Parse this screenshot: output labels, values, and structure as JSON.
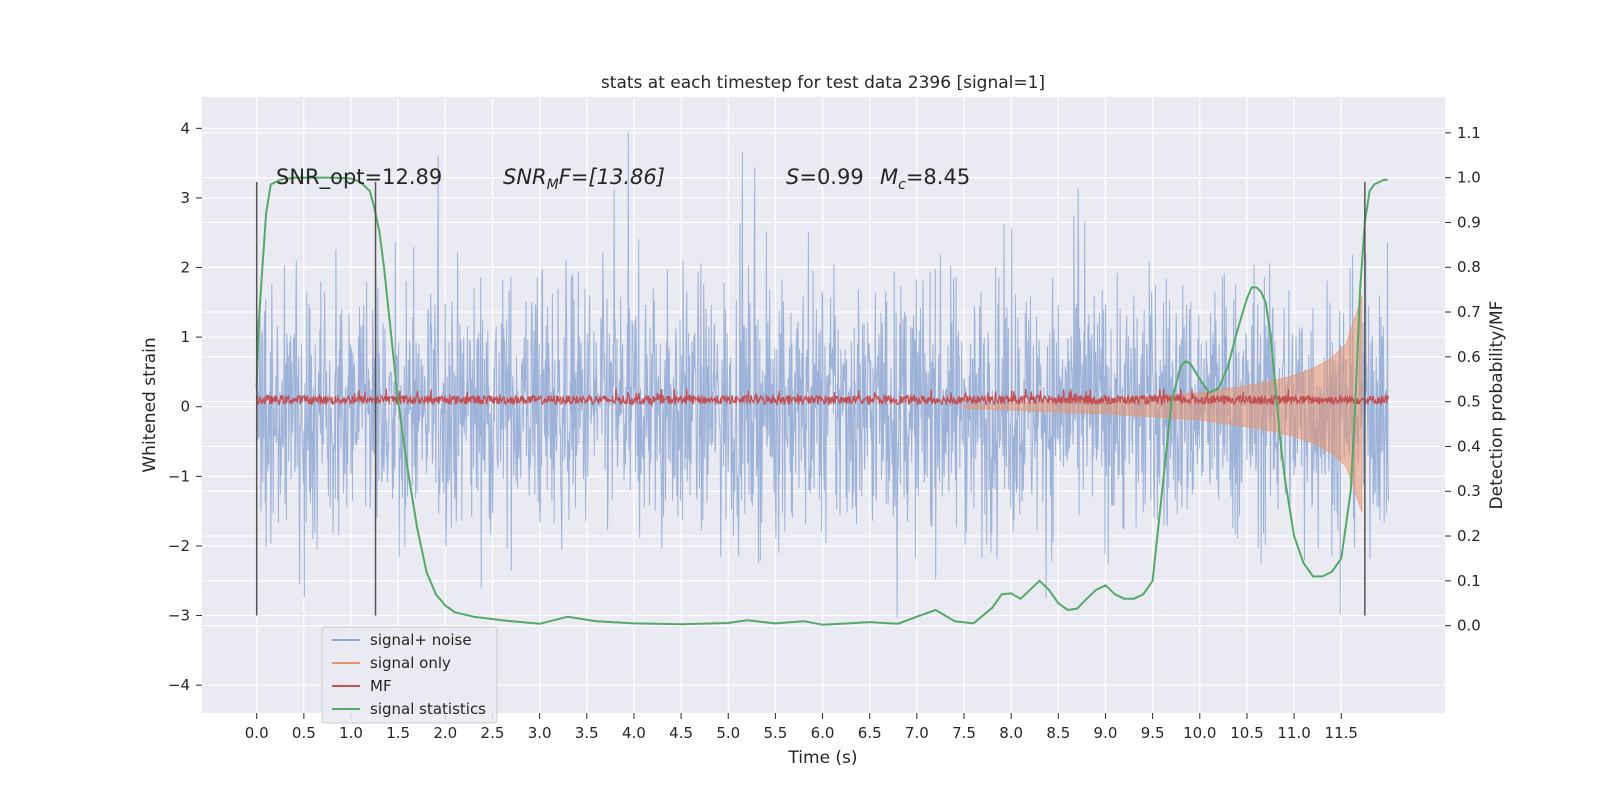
{
  "chart_data": {
    "type": "line",
    "title": "stats at each timestep for test data 2396 [signal=1]",
    "xlabel": "Time (s)",
    "ylabel_left": "Whitened strain",
    "ylabel_right": "Detection probability/MF",
    "xlim": [
      -0.58,
      12.6
    ],
    "ylim_left": [
      -4.4,
      4.45
    ],
    "ylim_right": [
      -0.195,
      1.18
    ],
    "x_ticks": [
      "0.0",
      "0.5",
      "1.0",
      "1.5",
      "2.0",
      "2.5",
      "3.0",
      "3.5",
      "4.0",
      "4.5",
      "5.0",
      "5.5",
      "6.0",
      "6.5",
      "7.0",
      "7.5",
      "8.0",
      "8.5",
      "9.0",
      "9.5",
      "10.0",
      "10.5",
      "11.0",
      "11.5"
    ],
    "y_ticks_left": [
      "4",
      "3",
      "2",
      "1",
      "0",
      "−1",
      "−2",
      "−3",
      "−4"
    ],
    "y_ticks_right": [
      "1.1",
      "1.0",
      "0.9",
      "0.8",
      "0.7",
      "0.6",
      "0.5",
      "0.4",
      "0.3",
      "0.2",
      "0.1",
      "0.0"
    ],
    "grid": true,
    "legend_position": "lower-left",
    "colors": {
      "signal_noise": "#8fa8d3",
      "signal_only": "#e8926b",
      "mf": "#c44e52",
      "signal_statistics": "#55a868",
      "plot_bg": "#eaeaf2",
      "marker_lines": "#555555"
    },
    "annotations": {
      "snr_opt": "SNR_opt=12.89",
      "snr_mf_italic": "SNR",
      "snr_mf_sub": "M",
      "snr_mf_rest": "F=[13.86]",
      "s_italic": "S",
      "s_rest": "=0.99",
      "mc_italic": "M",
      "mc_sub": "c",
      "mc_rest": "=8.45"
    },
    "vertical_markers": [
      0.0,
      1.26,
      11.75
    ],
    "series": [
      {
        "name": "signal+ noise",
        "color": "#8fa8d3",
        "envelope_description": "noise centered at 0, typical amplitude ±2, peaks to ~±3.5",
        "typical_upper": 2.0,
        "typical_lower": -2.0,
        "x_start": 0.0,
        "x_end": 12.0
      },
      {
        "name": "signal only",
        "color": "#e8926b",
        "x": [
          7.5,
          8.0,
          8.5,
          9.0,
          9.5,
          10.0,
          10.5,
          10.8,
          11.0,
          11.2,
          11.4,
          11.55,
          11.65,
          11.72
        ],
        "amplitude": [
          0.02,
          0.05,
          0.08,
          0.11,
          0.15,
          0.2,
          0.3,
          0.38,
          0.45,
          0.55,
          0.7,
          0.9,
          1.3,
          1.6
        ]
      },
      {
        "name": "MF",
        "color": "#c44e52",
        "baseline": 0.08,
        "typical_amplitude": 0.1
      },
      {
        "name": "signal statistics",
        "color": "#55a868",
        "x": [
          0.0,
          0.02,
          0.06,
          0.1,
          0.15,
          0.25,
          0.4,
          0.6,
          0.8,
          1.0,
          1.1,
          1.2,
          1.25,
          1.3,
          1.35,
          1.4,
          1.5,
          1.6,
          1.7,
          1.8,
          1.9,
          2.0,
          2.1,
          2.3,
          2.6,
          3.0,
          3.3,
          3.6,
          4.0,
          4.5,
          5.0,
          5.2,
          5.5,
          5.8,
          6.0,
          6.2,
          6.5,
          6.8,
          7.0,
          7.2,
          7.4,
          7.6,
          7.8,
          7.9,
          8.0,
          8.1,
          8.2,
          8.3,
          8.4,
          8.5,
          8.6,
          8.7,
          8.8,
          8.9,
          9.0,
          9.1,
          9.2,
          9.3,
          9.4,
          9.5,
          9.6,
          9.7,
          9.8,
          9.85,
          9.9,
          10.0,
          10.1,
          10.2,
          10.3,
          10.4,
          10.5,
          10.55,
          10.6,
          10.65,
          10.7,
          10.75,
          10.8,
          10.85,
          10.9,
          11.0,
          11.1,
          11.2,
          11.3,
          11.4,
          11.5,
          11.6,
          11.65,
          11.7,
          11.75,
          11.8,
          11.85,
          11.9,
          11.95,
          11.99
        ],
        "y": [
          0.53,
          0.67,
          0.8,
          0.92,
          0.985,
          0.995,
          1.0,
          1.0,
          1.0,
          0.998,
          0.99,
          0.97,
          0.93,
          0.88,
          0.8,
          0.7,
          0.5,
          0.35,
          0.22,
          0.12,
          0.07,
          0.045,
          0.03,
          0.02,
          0.012,
          0.004,
          0.02,
          0.01,
          0.005,
          0.003,
          0.006,
          0.012,
          0.005,
          0.01,
          0.002,
          0.004,
          0.008,
          0.004,
          0.02,
          0.035,
          0.01,
          0.005,
          0.04,
          0.07,
          0.072,
          0.06,
          0.08,
          0.1,
          0.08,
          0.05,
          0.035,
          0.038,
          0.06,
          0.08,
          0.09,
          0.07,
          0.06,
          0.06,
          0.07,
          0.1,
          0.3,
          0.5,
          0.58,
          0.59,
          0.585,
          0.55,
          0.52,
          0.53,
          0.58,
          0.66,
          0.73,
          0.755,
          0.755,
          0.745,
          0.72,
          0.65,
          0.54,
          0.42,
          0.33,
          0.2,
          0.14,
          0.11,
          0.11,
          0.12,
          0.15,
          0.3,
          0.5,
          0.75,
          0.9,
          0.97,
          0.985,
          0.99,
          0.995,
          0.995
        ]
      }
    ],
    "legend": [
      "signal+ noise",
      "signal only",
      "MF",
      "signal statistics"
    ]
  }
}
